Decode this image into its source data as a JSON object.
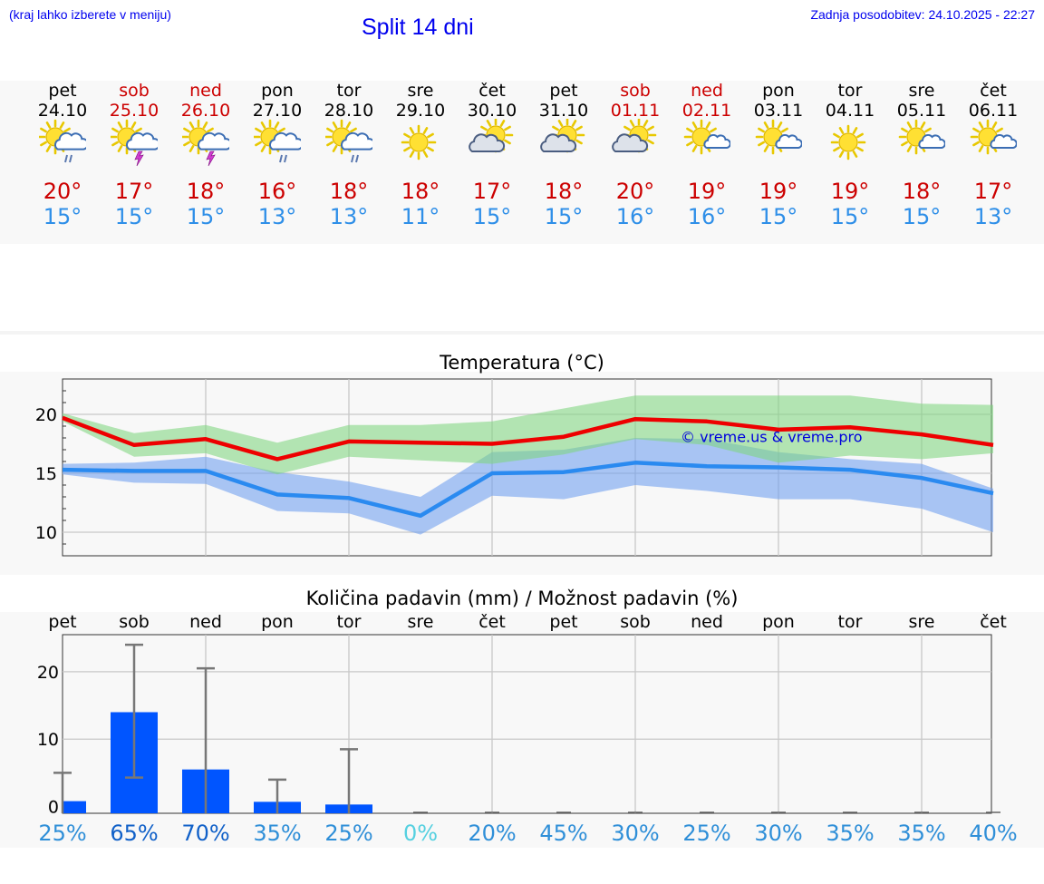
{
  "header": {
    "hint": "(kraj lahko izberete v meniju)",
    "title": "Split 14 dni",
    "updated": "Zadnja posodobitev: 24.10.2025 - 22:27"
  },
  "colors": {
    "link": "#0000ee",
    "max_temp": "#cc0000",
    "min_temp": "#2f8fe8",
    "max_band": "#7fd67f",
    "min_band": "#6f9ef0",
    "bar": "#0055ff"
  },
  "days": [
    {
      "name": "pet",
      "date": "24.10",
      "weekend": false,
      "icon": "sun-cloud-rain-icon",
      "tmax": "20°",
      "tmin": "15°"
    },
    {
      "name": "sob",
      "date": "25.10",
      "weekend": true,
      "icon": "sun-cloud-thunder-icon",
      "tmax": "17°",
      "tmin": "15°"
    },
    {
      "name": "ned",
      "date": "26.10",
      "weekend": true,
      "icon": "sun-cloud-thunder-icon",
      "tmax": "18°",
      "tmin": "15°"
    },
    {
      "name": "pon",
      "date": "27.10",
      "weekend": false,
      "icon": "sun-cloud-rain-icon",
      "tmax": "16°",
      "tmin": "13°"
    },
    {
      "name": "tor",
      "date": "28.10",
      "weekend": false,
      "icon": "sun-cloud-rain-icon",
      "tmax": "18°",
      "tmin": "13°"
    },
    {
      "name": "sre",
      "date": "29.10",
      "weekend": false,
      "icon": "sun-icon",
      "tmax": "18°",
      "tmin": "11°"
    },
    {
      "name": "čet",
      "date": "30.10",
      "weekend": false,
      "icon": "cloud-sun-icon",
      "tmax": "17°",
      "tmin": "15°"
    },
    {
      "name": "pet",
      "date": "31.10",
      "weekend": false,
      "icon": "cloud-sun-icon",
      "tmax": "18°",
      "tmin": "15°"
    },
    {
      "name": "sob",
      "date": "01.11",
      "weekend": true,
      "icon": "cloud-sun-icon",
      "tmax": "20°",
      "tmin": "16°"
    },
    {
      "name": "ned",
      "date": "02.11",
      "weekend": true,
      "icon": "sun-small-cloud-icon",
      "tmax": "19°",
      "tmin": "16°"
    },
    {
      "name": "pon",
      "date": "03.11",
      "weekend": false,
      "icon": "sun-small-cloud-icon",
      "tmax": "19°",
      "tmin": "15°"
    },
    {
      "name": "tor",
      "date": "04.11",
      "weekend": false,
      "icon": "sun-icon",
      "tmax": "19°",
      "tmin": "15°"
    },
    {
      "name": "sre",
      "date": "05.11",
      "weekend": false,
      "icon": "sun-small-cloud-icon",
      "tmax": "18°",
      "tmin": "15°"
    },
    {
      "name": "čet",
      "date": "06.11",
      "weekend": false,
      "icon": "sun-small-cloud-icon",
      "tmax": "17°",
      "tmin": "13°"
    }
  ],
  "chart_data": [
    {
      "type": "line",
      "title": "Temperatura (°C)",
      "xlabel": "",
      "ylabel": "",
      "ylim": [
        8,
        23
      ],
      "yticks": [
        10,
        15,
        20
      ],
      "watermark": "© vreme.us & vreme.pro",
      "x": [
        "24.10",
        "25.10",
        "26.10",
        "27.10",
        "28.10",
        "29.10",
        "30.10",
        "31.10",
        "01.11",
        "02.11",
        "03.11",
        "04.11",
        "05.11",
        "06.11"
      ],
      "series": [
        {
          "name": "max",
          "values": [
            19.7,
            17.4,
            17.9,
            16.2,
            17.7,
            17.6,
            17.5,
            18.1,
            19.6,
            19.4,
            18.7,
            18.9,
            18.3,
            17.4
          ]
        },
        {
          "name": "max_band_low",
          "values": [
            19.4,
            16.4,
            16.7,
            14.9,
            16.4,
            16.1,
            15.8,
            16.6,
            17.9,
            17.4,
            15.9,
            16.5,
            16.2,
            16.7
          ]
        },
        {
          "name": "max_band_high",
          "values": [
            20.1,
            18.4,
            19.1,
            17.6,
            19.1,
            19.1,
            19.4,
            20.5,
            21.6,
            21.6,
            21.6,
            21.6,
            20.9,
            20.8
          ]
        },
        {
          "name": "min",
          "values": [
            15.3,
            15.2,
            15.2,
            13.2,
            12.9,
            11.4,
            15.0,
            15.1,
            15.9,
            15.6,
            15.5,
            15.3,
            14.6,
            13.3
          ]
        },
        {
          "name": "min_band_low",
          "values": [
            14.9,
            14.2,
            14.1,
            11.8,
            11.6,
            9.8,
            13.1,
            12.8,
            14.0,
            13.5,
            12.8,
            12.8,
            12.0,
            10.0
          ]
        },
        {
          "name": "min_band_high",
          "values": [
            15.8,
            15.9,
            16.4,
            15.1,
            14.3,
            13.0,
            16.8,
            17.0,
            18.0,
            17.9,
            16.8,
            16.2,
            15.8,
            13.7
          ]
        }
      ]
    },
    {
      "type": "bar",
      "title": "Količina padavin (mm) / Možnost padavin (%)",
      "xlabel": "",
      "ylabel": "",
      "ylim": [
        -1,
        25.5
      ],
      "yticks": [
        0,
        10,
        20
      ],
      "categories": [
        "pet",
        "sob",
        "ned",
        "pon",
        "tor",
        "sre",
        "čet",
        "pet",
        "sob",
        "ned",
        "pon",
        "tor",
        "sre",
        "čet"
      ],
      "values": [
        0.8,
        14,
        5.5,
        0.7,
        0.3,
        0,
        0,
        0,
        0,
        0,
        0,
        0,
        0,
        0
      ],
      "error_high": [
        5.0,
        24.0,
        20.5,
        4.0,
        8.5,
        0,
        0,
        0,
        0,
        0,
        0,
        0,
        0,
        0
      ],
      "error_low": [
        0,
        4.3,
        0,
        0,
        0,
        0,
        0,
        0,
        0,
        0,
        0,
        0,
        0,
        0
      ],
      "probability": [
        "25%",
        "65%",
        "70%",
        "35%",
        "25%",
        "0%",
        "20%",
        "45%",
        "30%",
        "25%",
        "30%",
        "35%",
        "35%",
        "40%"
      ],
      "probability_values": [
        25,
        65,
        70,
        35,
        25,
        0,
        20,
        45,
        30,
        25,
        30,
        35,
        35,
        40
      ]
    }
  ]
}
